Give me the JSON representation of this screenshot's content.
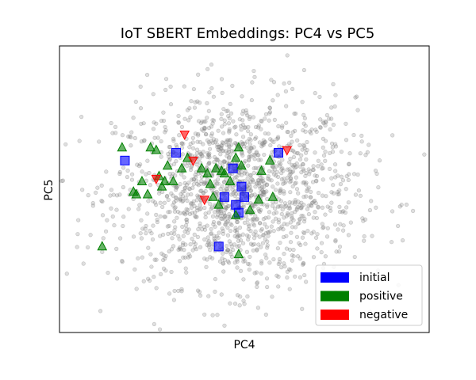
{
  "chart_data": {
    "type": "scatter",
    "title": "IoT SBERT Embeddings: PC4 vs PC5",
    "xlabel": "PC4",
    "ylabel": "PC5",
    "xlim": [
      -6.5,
      6.5
    ],
    "ylim": [
      -5.5,
      5.5
    ],
    "xticks": [],
    "yticks": [],
    "grid": false,
    "legend_position": "bottom-right",
    "background": {
      "name": "",
      "color": "#808080",
      "marker": "circle",
      "count": 1600,
      "mean": [
        -0.3,
        -0.1
      ],
      "std": [
        2.1,
        1.8
      ]
    },
    "series": [
      {
        "name": "initial",
        "color": "#0000ff",
        "marker": "square",
        "x": [
          -4.2,
          -2.4,
          1.2,
          -0.4,
          -0.1,
          0.0,
          -0.7,
          -0.3,
          -0.2,
          -0.9
        ],
        "y": [
          1.1,
          1.4,
          1.4,
          0.8,
          0.1,
          -0.3,
          -0.3,
          -0.6,
          -0.9,
          -2.2
        ]
      },
      {
        "name": "positive",
        "color": "#008000",
        "marker": "triangle-up",
        "x": [
          -4.3,
          -3.3,
          -3.1,
          -2.0,
          -0.2,
          0.9,
          -2.7,
          -2.2,
          -0.3,
          0.6,
          -1.5,
          -1.0,
          -0.7,
          -0.1,
          -3.0,
          -0.5,
          -1.3,
          -0.8,
          -1.2,
          -2.5,
          -3.6,
          -3.9,
          -2.8,
          -3.4,
          -3.8,
          -2.9,
          -1.1,
          1.0,
          0.5,
          -0.9,
          -0.3,
          0.2,
          -5.0,
          -0.2
        ],
        "y": [
          1.6,
          1.6,
          1.5,
          1.2,
          1.6,
          1.1,
          0.9,
          0.8,
          1.2,
          0.7,
          0.8,
          0.8,
          0.6,
          0.9,
          0.5,
          0.3,
          0.6,
          0.7,
          0.2,
          0.3,
          0.3,
          -0.1,
          0.3,
          -0.2,
          -0.2,
          0.1,
          -0.3,
          -0.3,
          -0.4,
          -0.6,
          -1.0,
          -0.8,
          -2.2,
          -2.5
        ]
      },
      {
        "name": "negative",
        "color": "#ff0000",
        "marker": "triangle-down",
        "x": [
          -2.1,
          1.5,
          -1.8,
          -3.1,
          -1.4
        ],
        "y": [
          2.1,
          1.5,
          1.1,
          0.4,
          -0.4
        ]
      }
    ]
  }
}
